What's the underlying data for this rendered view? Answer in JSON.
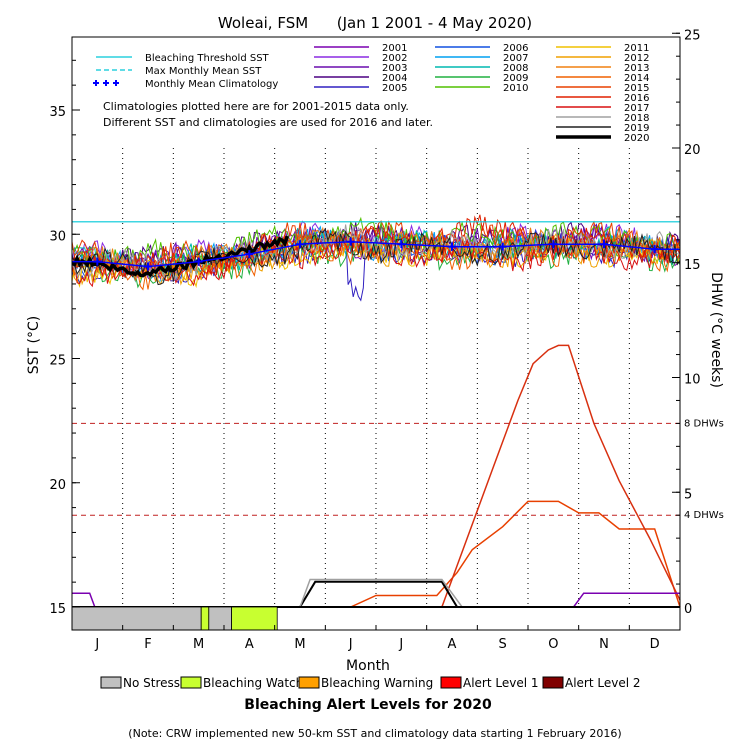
{
  "chart_data": {
    "type": "line",
    "title": "Woleai, FSM      (Jan 1 2001 - 4 May 2020)",
    "xlabel": "Month",
    "ylabel_left": "SST (°C)",
    "ylabel_right": "DHW (°C weeks)",
    "ylim_left": [
      15,
      38
    ],
    "ylim_right": [
      0,
      25
    ],
    "yticks_left": [
      15,
      20,
      25,
      30,
      35
    ],
    "yticks_right": [
      0,
      5,
      10,
      15,
      20,
      25
    ],
    "months": [
      "J",
      "F",
      "M",
      "A",
      "M",
      "J",
      "J",
      "A",
      "S",
      "O",
      "N",
      "D"
    ],
    "grid": "vertical dotted at month boundaries",
    "reference_lines": {
      "bleaching_threshold_sst": 30.5,
      "max_monthly_mean_sst": 30.5,
      "dhw_8": 8,
      "dhw_4": 4,
      "dhw_8_label": "8 DHWs",
      "dhw_4_label": "4 DHWs"
    },
    "legend_left": [
      {
        "label": "Bleaching Threshold SST",
        "color": "#00c8d8",
        "style": "solid"
      },
      {
        "label": "Max Monthly Mean SST",
        "color": "#00c8d8",
        "style": "dashed"
      },
      {
        "label": "Monthly Mean Climatology",
        "color": "#0000ff",
        "style": "plus"
      }
    ],
    "year_series": [
      {
        "name": "2001",
        "color": "#7a00b0"
      },
      {
        "name": "2002",
        "color": "#8a2be2"
      },
      {
        "name": "2003",
        "color": "#6a0dad"
      },
      {
        "name": "2004",
        "color": "#4b0082"
      },
      {
        "name": "2005",
        "color": "#3020c0"
      },
      {
        "name": "2006",
        "color": "#1050e0"
      },
      {
        "name": "2007",
        "color": "#00a0f0"
      },
      {
        "name": "2008",
        "color": "#00b8b0"
      },
      {
        "name": "2009",
        "color": "#20b040"
      },
      {
        "name": "2010",
        "color": "#50c000"
      },
      {
        "name": "2011",
        "color": "#f0c000"
      },
      {
        "name": "2012",
        "color": "#f0a000"
      },
      {
        "name": "2013",
        "color": "#f08010"
      },
      {
        "name": "2014",
        "color": "#f06000"
      },
      {
        "name": "2015",
        "color": "#e84000"
      },
      {
        "name": "2016",
        "color": "#e02000"
      },
      {
        "name": "2017",
        "color": "#d81010"
      },
      {
        "name": "2018",
        "color": "#a0a0a0"
      },
      {
        "name": "2019",
        "color": "#202020"
      },
      {
        "name": "2020",
        "color": "#000000",
        "bold": true
      }
    ],
    "climatology_monthly_sst": [
      28.9,
      28.7,
      28.9,
      29.2,
      29.6,
      29.7,
      29.6,
      29.5,
      29.5,
      29.6,
      29.6,
      29.4
    ],
    "sst_2020_monthly": [
      28.9,
      28.4,
      28.8,
      29.3,
      29.8
    ],
    "dhw_series": [
      {
        "name": "2016",
        "color": "#e84000",
        "x_month": [
          0,
          0.5,
          5.5,
          6.0,
          7.2,
          7.6,
          7.9,
          8.5,
          9.0,
          9.6,
          10.0,
          10.4,
          10.8,
          11.5,
          12.0
        ],
        "y": [
          0,
          0,
          0,
          0.5,
          0.5,
          1.5,
          2.5,
          3.5,
          4.6,
          4.6,
          4.1,
          4.1,
          3.4,
          3.4,
          0
        ]
      },
      {
        "name": "2017",
        "color": "#d83010",
        "x_month": [
          0,
          7.3,
          7.8,
          8.3,
          8.8,
          9.1,
          9.4,
          9.6,
          9.8,
          10.3,
          10.8,
          11.4,
          12.0
        ],
        "y": [
          0,
          0,
          3.0,
          6.0,
          9.0,
          10.6,
          11.2,
          11.4,
          11.4,
          8.0,
          5.5,
          3.0,
          0.3
        ]
      },
      {
        "name": "2019",
        "color": "#000000",
        "x_month": [
          0,
          4.5,
          4.8,
          7.3,
          7.6,
          12.0
        ],
        "y": [
          0,
          0,
          1.1,
          1.1,
          0,
          0
        ]
      },
      {
        "name": "2018",
        "color": "#a0a0a0",
        "x_month": [
          0,
          4.5,
          4.7,
          7.3,
          7.7,
          12.0
        ],
        "y": [
          0,
          0,
          1.2,
          1.2,
          0,
          0
        ]
      },
      {
        "name": "2001",
        "color": "#7a00b0",
        "x_month": [
          0,
          0.35,
          0.45,
          9.9,
          10.1,
          12.0
        ],
        "y": [
          0.6,
          0.6,
          0,
          0,
          0.6,
          0.6
        ]
      }
    ],
    "alert_bar_2020": [
      {
        "start_month": 0.0,
        "end_month": 2.55,
        "level": "No Stress"
      },
      {
        "start_month": 2.55,
        "end_month": 2.7,
        "level": "Bleaching Watch"
      },
      {
        "start_month": 2.7,
        "end_month": 3.15,
        "level": "No Stress"
      },
      {
        "start_month": 3.15,
        "end_month": 4.05,
        "level": "Bleaching Watch"
      }
    ]
  },
  "header": {
    "title": "Woleai, FSM      (Jan 1 2001 - 4 May 2020)"
  },
  "annotations": {
    "line1": "Climatologies plotted here are for 2001-2015 data only.",
    "line2": "Different SST and climatologies are used for 2016 and later."
  },
  "alert_legend": {
    "title": "Bleaching Alert Levels for 2020",
    "items": [
      {
        "label": "No Stress",
        "color": "#c0c0c0"
      },
      {
        "label": "Bleaching Watch",
        "color": "#c8ff30"
      },
      {
        "label": "Bleaching Warning",
        "color": "#ffa000"
      },
      {
        "label": "Alert Level 1",
        "color": "#ff0000"
      },
      {
        "label": "Alert Level 2",
        "color": "#800000"
      }
    ]
  },
  "footnote": "(Note: CRW implemented new 50-km SST and climatology data starting 1 February 2016)"
}
